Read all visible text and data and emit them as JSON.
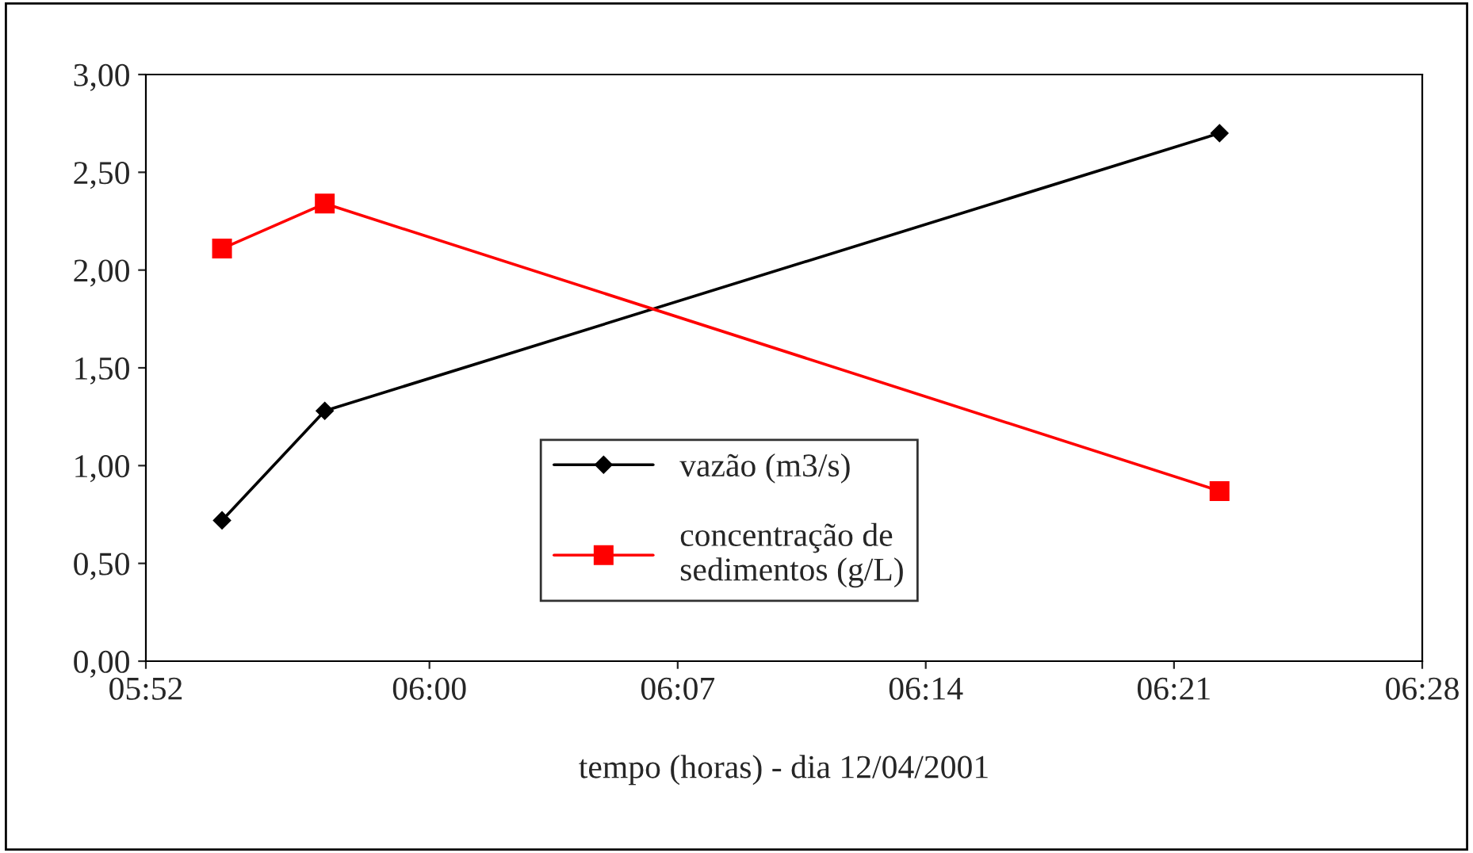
{
  "chart_data": {
    "type": "line",
    "xlabel": "tempo (horas) - dia 12/04/2001",
    "series": [
      {
        "name": "vazão (m3/s)",
        "color": "#000000",
        "marker": "diamond",
        "x": [
          5.9025,
          5.9508,
          6.3714
        ],
        "values": [
          0.72,
          1.28,
          2.7
        ]
      },
      {
        "name": "concentração de\nsedimentos (g/L)",
        "color": "#ff0000",
        "marker": "square",
        "x": [
          5.9025,
          5.9508,
          6.3714
        ],
        "values": [
          2.11,
          2.34,
          0.87
        ]
      }
    ],
    "xlim": [
      5.8667,
      6.4667
    ],
    "xticks": [
      {
        "value": 5.8667,
        "label": "05:52"
      },
      {
        "value": 6.0,
        "label": "06:00"
      },
      {
        "value": 6.1167,
        "label": "06:07"
      },
      {
        "value": 6.2333,
        "label": "06:14"
      },
      {
        "value": 6.35,
        "label": "06:21"
      },
      {
        "value": 6.4667,
        "label": "06:28"
      }
    ],
    "ylim": [
      0,
      3
    ],
    "yticks": [
      {
        "value": 0,
        "label": "0,00"
      },
      {
        "value": 0.5,
        "label": "0,50"
      },
      {
        "value": 1,
        "label": "1,00"
      },
      {
        "value": 1.5,
        "label": "1,50"
      },
      {
        "value": 2,
        "label": "2,00"
      },
      {
        "value": 2.5,
        "label": "2,50"
      },
      {
        "value": 3,
        "label": "3,00"
      }
    ],
    "grid": false,
    "legend": "center",
    "line_style": "solid"
  }
}
